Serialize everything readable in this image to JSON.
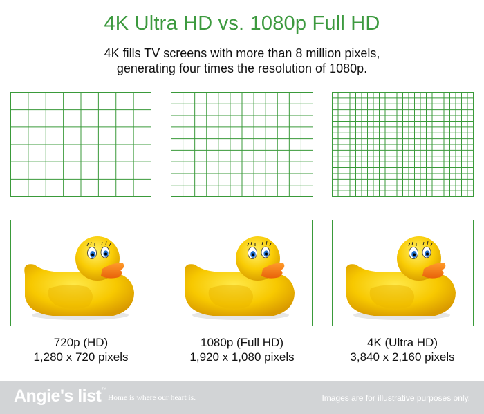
{
  "header": {
    "title": "4K Ultra HD vs. 1080p Full HD",
    "subtitle_line1": "4K fills TV screens with more than 8 million pixels,",
    "subtitle_line2": "generating four times the resolution of 1080p."
  },
  "colors": {
    "title_green": "#3d9a3f",
    "grid_green": "#3a9a3a",
    "footer_gray": "#d2d4d6"
  },
  "panels": [
    {
      "label": "720p (HD)",
      "pixels": "1,280 x 720 pixels",
      "grid_cols": 8,
      "grid_rows": 6
    },
    {
      "label": "1080p (Full HD)",
      "pixels": "1,920 x 1,080 pixels",
      "grid_cols": 12,
      "grid_rows": 9
    },
    {
      "label": "4K (Ultra HD)",
      "pixels": "3,840 x 2,160 pixels",
      "grid_cols": 24,
      "grid_rows": 18
    }
  ],
  "footer": {
    "logo": "Angie's list",
    "tagline": "Home is where our heart is.",
    "disclaimer": "Images are for illustrative purposes only."
  }
}
